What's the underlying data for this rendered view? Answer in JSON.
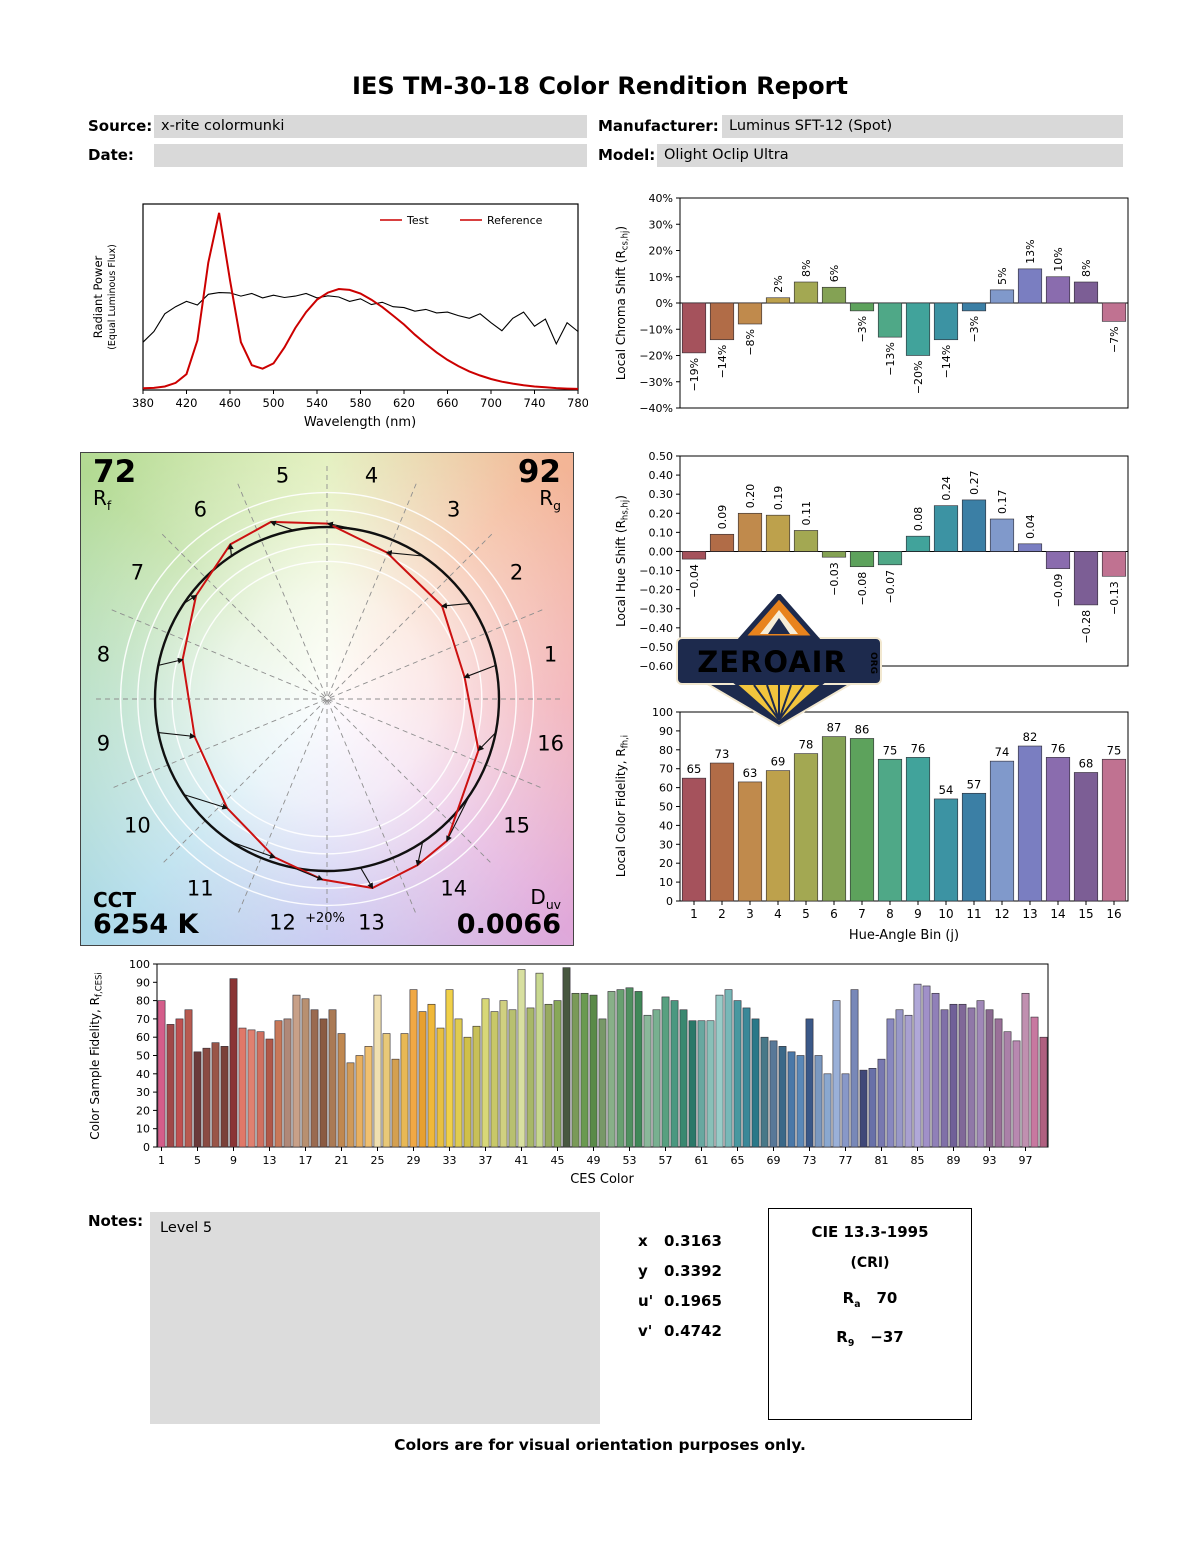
{
  "report": {
    "title": "IES TM-30-18 Color Rendition Report",
    "source_label": "Source:",
    "source_value": "x-rite colormunki",
    "manufacturer_label": "Manufacturer:",
    "manufacturer_value": "Luminus SFT-12 (Spot)",
    "date_label": "Date:",
    "date_value": "",
    "model_label": "Model:",
    "model_value": "Olight Oclip Ultra",
    "notes_label": "Notes:",
    "notes_value": "Level 5",
    "footer": "Colors are for visual orientation purposes only."
  },
  "chromaticity": {
    "rows": [
      {
        "label": "x",
        "value": "0.3163"
      },
      {
        "label": "y",
        "value": "0.3392"
      },
      {
        "label": "u'",
        "value": "0.1965"
      },
      {
        "label": "v'",
        "value": "0.4742"
      }
    ]
  },
  "cri_box": {
    "title": "CIE 13.3-1995",
    "subtitle": "(CRI)",
    "ra_main": "R",
    "ra_sub": "a",
    "ra_value": "70",
    "r9_main": "R",
    "r9_sub": "9",
    "r9_value": "−37"
  },
  "cvg": {
    "rf_value": "72",
    "rf_main": "R",
    "rf_sub": "f",
    "rg_value": "92",
    "rg_main": "R",
    "rg_sub": "g",
    "cct_label": "CCT",
    "cct_value": "6254 K",
    "duv_main": "D",
    "duv_sub": "uv",
    "duv_value": "0.0066",
    "ring_label": "+20%",
    "bin_numbers": [
      1,
      2,
      3,
      4,
      5,
      6,
      7,
      8,
      9,
      10,
      11,
      12,
      13,
      14,
      15,
      16
    ]
  },
  "logo": {
    "wordmark": "ZEROAIR",
    "suffix": "ORG"
  },
  "bin_colors": [
    "#a5525c",
    "#b16c47",
    "#c08a4c",
    "#bda14c",
    "#a3a852",
    "#84a254",
    "#5da25c",
    "#4fa887",
    "#41a39b",
    "#3c93a3",
    "#3b7fa5",
    "#8099cb",
    "#7a7ec1",
    "#8a6cae",
    "#7c5e95",
    "#c07291"
  ],
  "ces_colors": [
    "#d45d8a",
    "#a04848",
    "#c05050",
    "#b85a50",
    "#6a3a3a",
    "#8a4a42",
    "#9a5548",
    "#7a4038",
    "#8a3535",
    "#e07868",
    "#e08070",
    "#d07060",
    "#b05848",
    "#c87858",
    "#b08878",
    "#c8a088",
    "#b89070",
    "#9a6a50",
    "#8a5a42",
    "#aa7a55",
    "#c08850",
    "#d09a58",
    "#e8b060",
    "#f0c070",
    "#f0e0b0",
    "#e8c878",
    "#d4a050",
    "#e8b855",
    "#f0a845",
    "#e8a030",
    "#f0b838",
    "#e8c040",
    "#f0d048",
    "#e0cc50",
    "#d0c048",
    "#c8c058",
    "#d8d878",
    "#c8c868",
    "#d0d080",
    "#b8c070",
    "#d8e0a0",
    "#a8b868",
    "#c8d890",
    "#98aa60",
    "#88a858",
    "#485840",
    "#7a9a58",
    "#6a9a50",
    "#5a8a48",
    "#789868",
    "#88b088",
    "#68a070",
    "#509060",
    "#408858",
    "#8ab89a",
    "#78b090",
    "#58a080",
    "#4a9880",
    "#3a8870",
    "#2a7868",
    "#68a8a0",
    "#88c0b8",
    "#98ccc8",
    "#78b8b8",
    "#4898a0",
    "#3a8898",
    "#2a7888",
    "#487888",
    "#587898",
    "#3a6888",
    "#4a78a8",
    "#5a88b8",
    "#3a5888",
    "#7a98c0",
    "#8aa8d0",
    "#9ab0d8",
    "#8898c8",
    "#7888b8",
    "#404878",
    "#6870a8",
    "#7878b0",
    "#8888c0",
    "#9898c8",
    "#a8a0d0",
    "#b0a8d8",
    "#a090c8",
    "#9080b8",
    "#8070a8",
    "#706098",
    "#806898",
    "#9078a8",
    "#a088b8",
    "#8a6890",
    "#9a7098",
    "#aa80a8",
    "#b888b0",
    "#c090b0",
    "#c878a0",
    "#b06080"
  ],
  "chart_data": [
    {
      "id": "spd",
      "type": "line",
      "xlabel": "Wavelength (nm)",
      "ylabel": "Radiant Power",
      "ylabel2": "(Equal Luminous Flux)",
      "xlim": [
        380,
        780
      ],
      "x_ticks": [
        380,
        420,
        460,
        500,
        540,
        580,
        620,
        660,
        700,
        740,
        780
      ],
      "x": [
        380,
        390,
        400,
        410,
        420,
        430,
        440,
        450,
        460,
        470,
        480,
        490,
        500,
        510,
        520,
        530,
        540,
        550,
        560,
        570,
        580,
        590,
        600,
        610,
        620,
        630,
        640,
        650,
        660,
        670,
        680,
        690,
        700,
        710,
        720,
        730,
        740,
        750,
        760,
        770,
        780
      ],
      "series": [
        {
          "name": "Test",
          "color": "#cc0000",
          "text_color": "#cc0000",
          "legend_line": "#cc0000",
          "y": [
            0.01,
            0.012,
            0.02,
            0.04,
            0.09,
            0.28,
            0.72,
            1.0,
            0.62,
            0.27,
            0.14,
            0.12,
            0.15,
            0.24,
            0.35,
            0.44,
            0.51,
            0.55,
            0.57,
            0.565,
            0.545,
            0.51,
            0.468,
            0.42,
            0.37,
            0.312,
            0.26,
            0.212,
            0.17,
            0.135,
            0.105,
            0.082,
            0.062,
            0.047,
            0.036,
            0.027,
            0.02,
            0.015,
            0.011,
            0.008,
            0.006
          ]
        },
        {
          "name": "Reference",
          "color": "#000000",
          "text_color": "#000000",
          "legend_line": "#cc0000",
          "y": [
            0.27,
            0.33,
            0.43,
            0.47,
            0.5,
            0.48,
            0.54,
            0.55,
            0.548,
            0.53,
            0.545,
            0.52,
            0.535,
            0.522,
            0.53,
            0.545,
            0.52,
            0.532,
            0.525,
            0.5,
            0.515,
            0.482,
            0.495,
            0.47,
            0.465,
            0.445,
            0.455,
            0.435,
            0.44,
            0.42,
            0.405,
            0.43,
            0.38,
            0.335,
            0.405,
            0.44,
            0.36,
            0.4,
            0.26,
            0.38,
            0.33
          ]
        }
      ]
    },
    {
      "id": "chroma_shift",
      "type": "bar",
      "ylabel_prefix": "Local Chroma Shift (R",
      "ylabel_sub": "cs,hj",
      "ylabel_suffix": ")",
      "ylim": [
        -40,
        40
      ],
      "y_ticks": [
        40,
        30,
        20,
        10,
        0,
        -10,
        -20,
        -30,
        -40
      ],
      "values": [
        -19,
        -14,
        -8,
        2,
        8,
        6,
        -3,
        -13,
        -20,
        -14,
        -3,
        5,
        13,
        10,
        8,
        -7
      ],
      "bar_labels": [
        "−19%",
        "−14%",
        "−8%",
        "2%",
        "8%",
        "6%",
        "−3%",
        "−13%",
        "−20%",
        "−14%",
        "−3%",
        "5%",
        "13%",
        "10%",
        "8%",
        "−7%"
      ]
    },
    {
      "id": "hue_shift",
      "type": "bar",
      "ylabel_prefix": "Local Hue Shift (R",
      "ylabel_sub": "hs,hj",
      "ylabel_suffix": ")",
      "ylim": [
        -0.6,
        0.5
      ],
      "y_ticks": [
        0.5,
        0.4,
        0.3,
        0.2,
        0.1,
        0,
        -0.1,
        -0.2,
        -0.3,
        -0.4,
        -0.5,
        -0.6
      ],
      "values": [
        -0.04,
        0.09,
        0.2,
        0.19,
        0.11,
        -0.03,
        -0.08,
        -0.07,
        0.08,
        0.24,
        0.27,
        0.17,
        0.04,
        -0.09,
        -0.28,
        -0.13
      ],
      "bar_labels": [
        "−0.04",
        "0.09",
        "0.20",
        "0.19",
        "0.11",
        "−0.03",
        "−0.08",
        "−0.07",
        "0.08",
        "0.24",
        "0.27",
        "0.17",
        "0.04",
        "−0.09",
        "−0.28",
        "−0.13"
      ]
    },
    {
      "id": "local_fidelity",
      "type": "bar",
      "ylabel_prefix": "Local Color Fidelity, R",
      "ylabel_sub": "fh,i",
      "ylabel_suffix": "",
      "xlabel": "Hue-Angle Bin (j)",
      "ylim": [
        0,
        100
      ],
      "y_ticks": [
        0,
        10,
        20,
        30,
        40,
        50,
        60,
        70,
        80,
        90,
        100
      ],
      "x_ticks": [
        1,
        2,
        3,
        4,
        5,
        6,
        7,
        8,
        9,
        10,
        11,
        12,
        13,
        14,
        15,
        16
      ],
      "values": [
        65,
        73,
        63,
        69,
        78,
        87,
        86,
        75,
        76,
        54,
        57,
        74,
        82,
        76,
        68,
        75
      ],
      "bar_labels": [
        "65",
        "73",
        "63",
        "69",
        "78",
        "87",
        "86",
        "75",
        "76",
        "54",
        "57",
        "74",
        "82",
        "76",
        "68",
        "75"
      ]
    },
    {
      "id": "ces_fidelity",
      "type": "bar",
      "ylabel_prefix": "Color Sample Fidelity, R",
      "ylabel_sub": "f,CESi",
      "ylabel_suffix": "",
      "xlabel": "CES Color",
      "ylim": [
        0,
        100
      ],
      "y_ticks": [
        0,
        10,
        20,
        30,
        40,
        50,
        60,
        70,
        80,
        90,
        100
      ],
      "x_ticks": [
        1,
        5,
        9,
        13,
        17,
        21,
        25,
        29,
        33,
        37,
        41,
        45,
        49,
        53,
        57,
        61,
        65,
        69,
        73,
        77,
        81,
        85,
        89,
        93,
        97
      ],
      "values": [
        80,
        67,
        70,
        75,
        52,
        54,
        57,
        55,
        92,
        65,
        64,
        63,
        59,
        69,
        70,
        83,
        81,
        75,
        70,
        75,
        62,
        46,
        50,
        55,
        83,
        62,
        48,
        62,
        86,
        74,
        78,
        65,
        86,
        70,
        60,
        66,
        81,
        74,
        80,
        75,
        97,
        76,
        95,
        78,
        80,
        98,
        84,
        84,
        83,
        70,
        85,
        86,
        87,
        85,
        72,
        75,
        82,
        80,
        75,
        69,
        69,
        69,
        83,
        86,
        80,
        76,
        70,
        60,
        58,
        55,
        52,
        50,
        70,
        50,
        40,
        80,
        40,
        86,
        42,
        43,
        48,
        70,
        75,
        72,
        89,
        88,
        84,
        75,
        78,
        78,
        76,
        80,
        75,
        70,
        63,
        58,
        84,
        71,
        60
      ]
    }
  ]
}
